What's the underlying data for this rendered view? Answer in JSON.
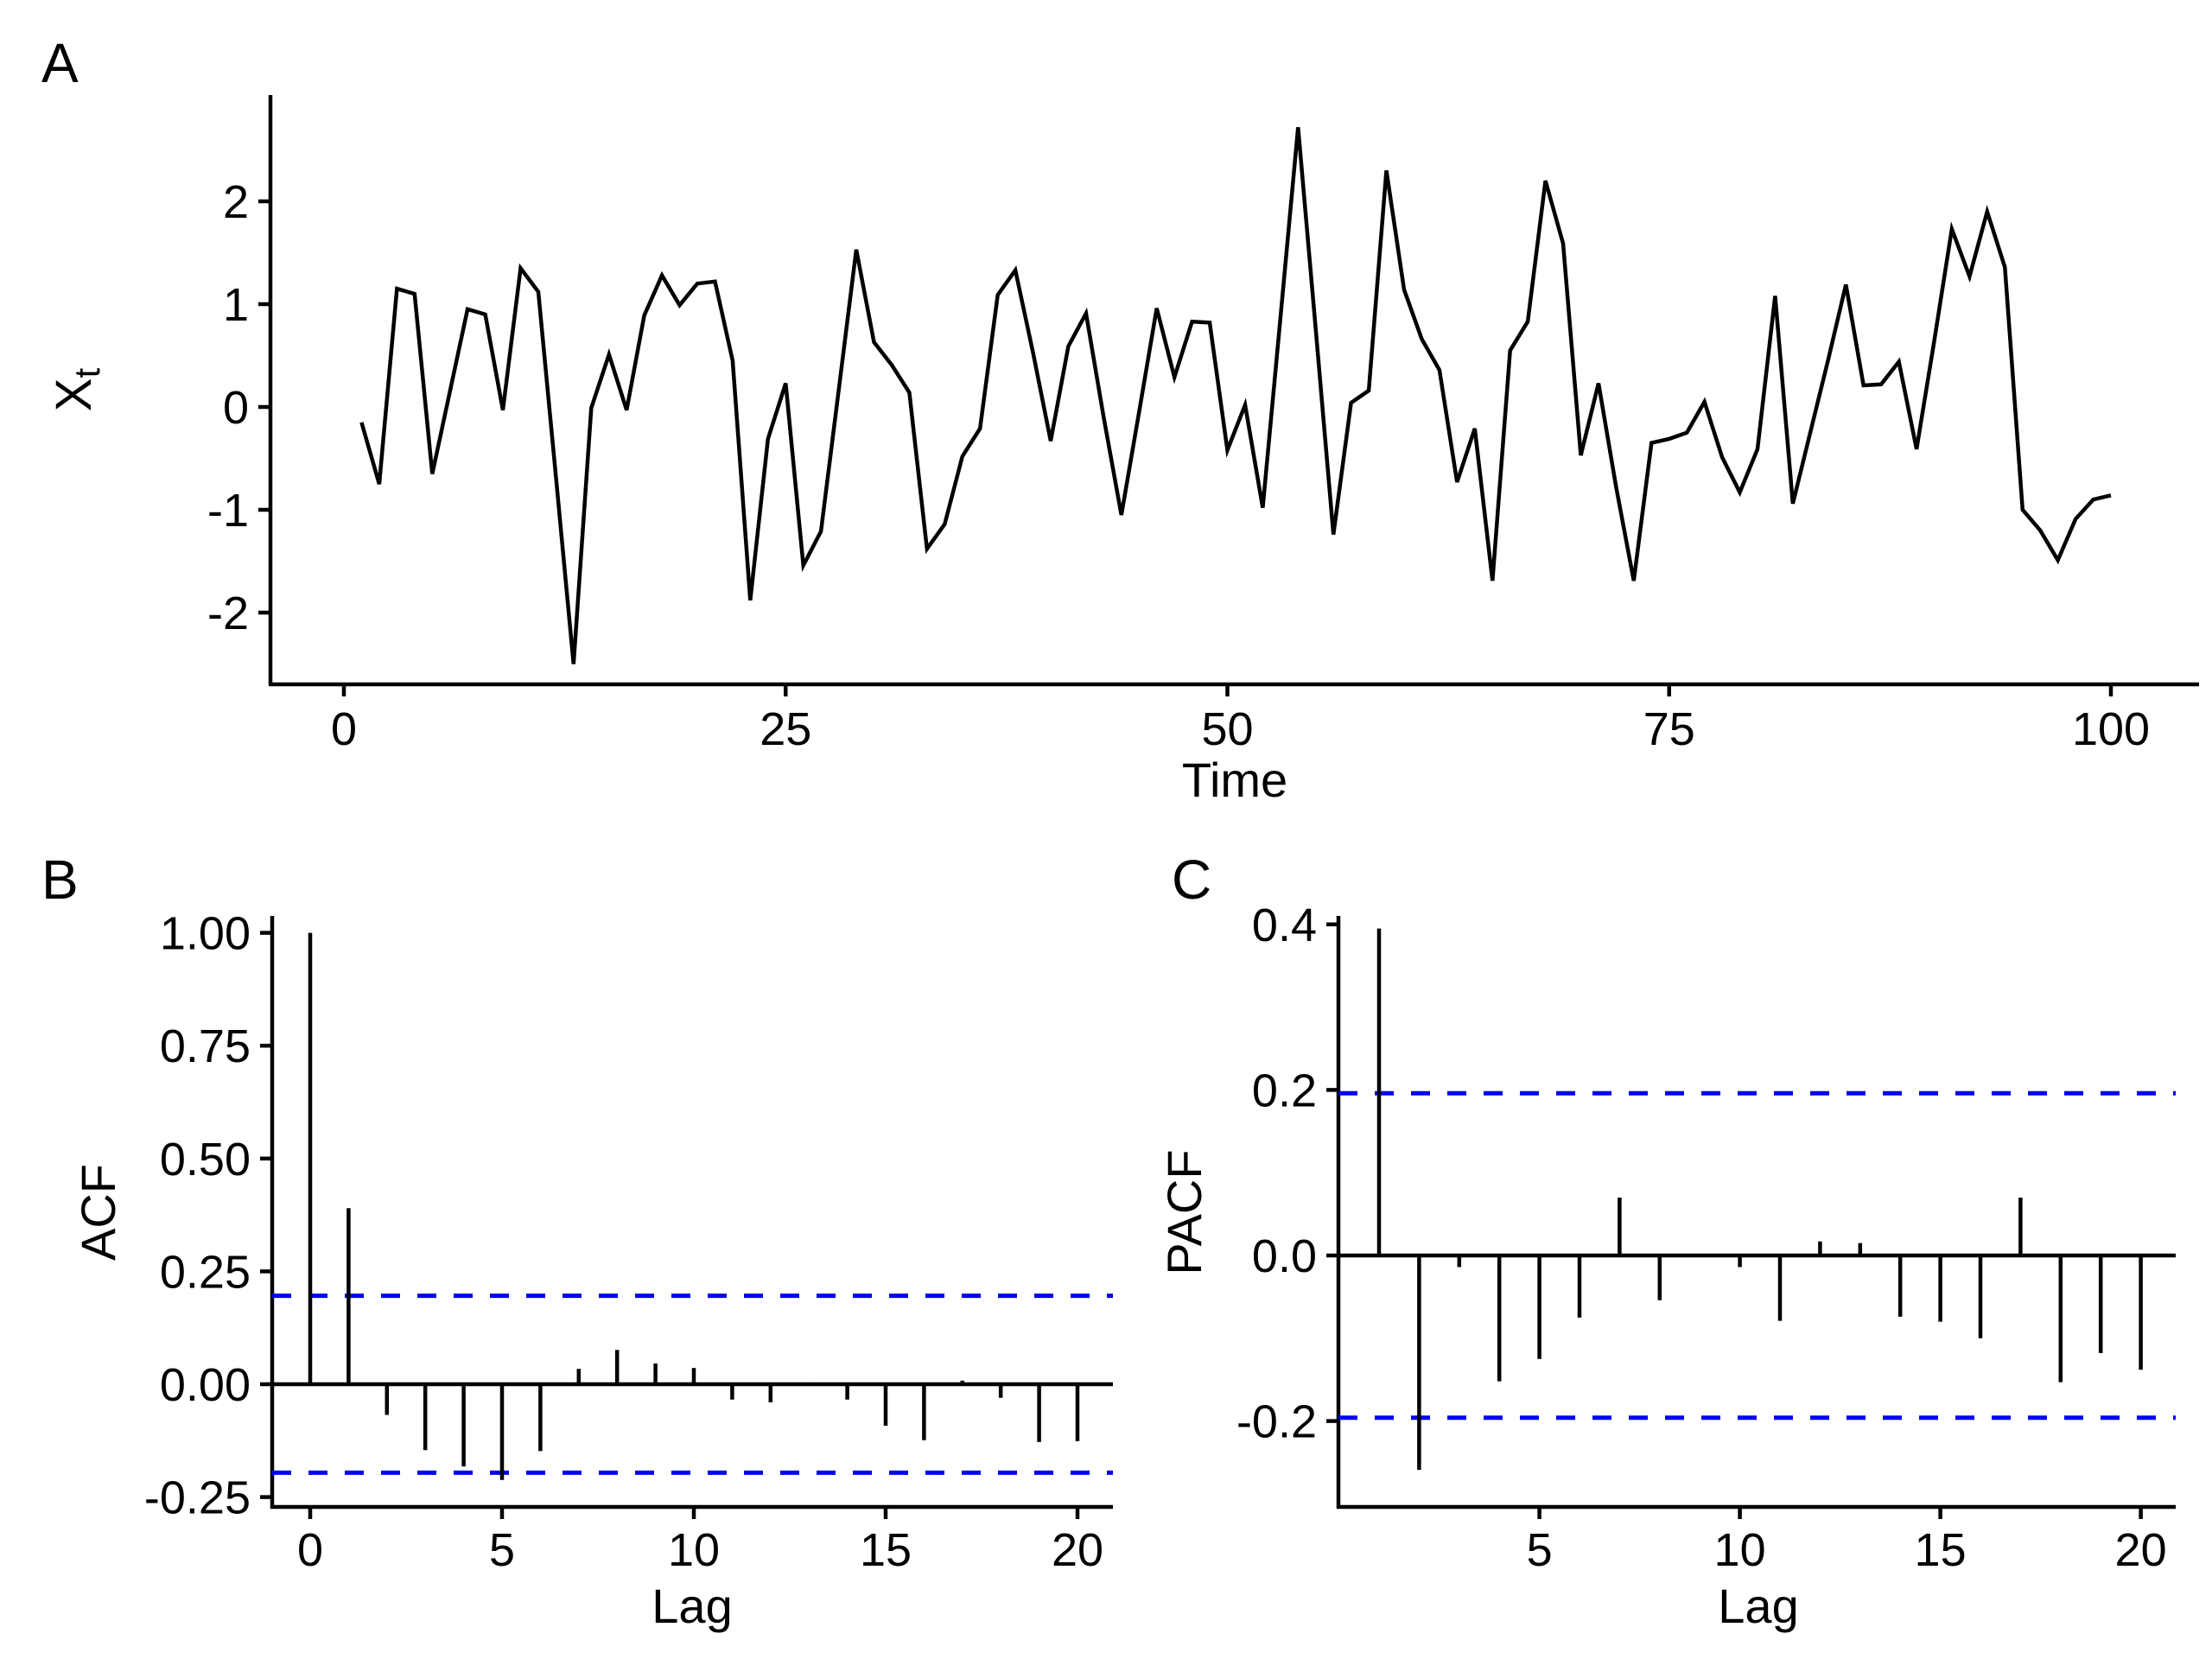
{
  "figure": {
    "background": "#ffffff",
    "series_color": "#000000",
    "axis_color": "#000000",
    "conf_band_color": "#0000EE"
  },
  "chart_data": [
    {
      "type": "line",
      "panel_label": "A",
      "xlabel": "Time",
      "ylabel": "X_t",
      "ylabel_base": "X",
      "ylabel_sub": "t",
      "x_start": 1,
      "x_step": 1,
      "xticks": [
        0,
        25,
        50,
        75,
        100
      ],
      "yticks": [
        2,
        1,
        0,
        -1,
        -2
      ],
      "xlim": [
        0,
        104
      ],
      "ylim": [
        -2.6,
        2.85
      ],
      "grid": false,
      "line_color": "#000000",
      "values": [
        -0.15,
        -0.75,
        1.15,
        1.1,
        -0.65,
        0.15,
        0.95,
        0.9,
        -0.03,
        1.35,
        1.12,
        -0.68,
        -2.5,
        -0.01,
        0.51,
        -0.03,
        0.89,
        1.28,
        0.99,
        1.2,
        1.22,
        0.45,
        -1.88,
        -0.31,
        0.23,
        -1.54,
        -1.21,
        0.16,
        1.53,
        0.63,
        0.41,
        0.14,
        -1.38,
        -1.14,
        -0.48,
        -0.21,
        1.09,
        1.33,
        0.53,
        -0.33,
        0.59,
        0.91,
        -0.1,
        -1.05,
        -0.05,
        0.96,
        0.29,
        0.83,
        0.82,
        -0.42,
        0.02,
        -0.98,
        0.86,
        2.72,
        0.75,
        -1.24,
        0.04,
        0.16,
        2.3,
        1.14,
        0.66,
        0.36,
        -0.73,
        -0.21,
        -1.69,
        0.55,
        0.83,
        2.2,
        1.59,
        -0.47,
        0.23,
        -0.78,
        -1.69,
        -0.35,
        -0.31,
        -0.25,
        0.05,
        -0.49,
        -0.83,
        -0.41,
        1.08,
        -0.94,
        -0.24,
        0.46,
        1.19,
        0.21,
        0.22,
        0.44,
        -0.41,
        0.64,
        1.73,
        1.27,
        1.9,
        1.36,
        -1.0,
        -1.2,
        -1.49,
        -1.09,
        -0.9,
        -0.86
      ]
    },
    {
      "type": "bar",
      "panel_label": "B",
      "xlabel": "Lag",
      "ylabel": "ACF",
      "lag_start": 0,
      "xticks": [
        0,
        5,
        10,
        15,
        20
      ],
      "yticks": [
        1.0,
        0.75,
        0.5,
        0.25,
        0.0,
        -0.25
      ],
      "ytick_labels": [
        "1.00",
        "0.75",
        "0.50",
        "0.25",
        "0.00",
        "-0.25"
      ],
      "ylim": [
        -0.28,
        1.04
      ],
      "conf_level": 0.196,
      "conf_style": "dashed",
      "conf_color": "#0000EE",
      "grid": false,
      "values": [
        1.0,
        0.39,
        -0.068,
        -0.146,
        -0.182,
        -0.212,
        -0.148,
        0.034,
        0.076,
        0.046,
        0.036,
        -0.034,
        -0.04,
        0.004,
        -0.034,
        -0.092,
        -0.124,
        0.008,
        -0.03,
        -0.128,
        -0.126
      ]
    },
    {
      "type": "bar",
      "panel_label": "C",
      "xlabel": "Lag",
      "ylabel": "PACF",
      "lag_start": 1,
      "xticks": [
        5,
        10,
        15,
        20
      ],
      "yticks": [
        0.4,
        0.2,
        0.0,
        -0.2
      ],
      "ytick_labels": [
        "0.4",
        "0.2",
        "0.0",
        "-0.2"
      ],
      "ylim": [
        -0.3,
        0.44
      ],
      "conf_level": 0.196,
      "conf_style": "dashed",
      "conf_color": "#0000EE",
      "grid": false,
      "values": [
        0.395,
        -0.259,
        -0.014,
        -0.152,
        -0.125,
        -0.075,
        0.07,
        -0.054,
        0.0,
        -0.014,
        -0.079,
        0.017,
        0.015,
        -0.074,
        -0.08,
        -0.1,
        0.07,
        -0.153,
        -0.118,
        -0.138
      ]
    }
  ]
}
